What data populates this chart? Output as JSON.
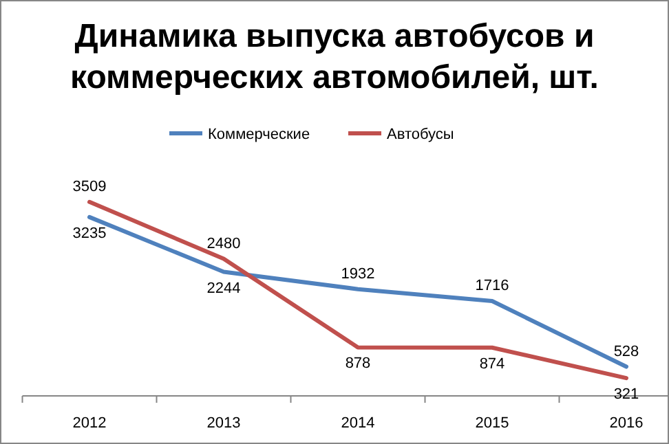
{
  "chart_data": {
    "type": "line",
    "title": "Динамика выпуска автобусов и коммерческих автомобилей, шт.",
    "categories": [
      "2012",
      "2013",
      "2014",
      "2015",
      "2016"
    ],
    "series": [
      {
        "name": "Коммерческие",
        "color": "#4f81bd",
        "values": [
          3235,
          2244,
          1932,
          1716,
          528
        ]
      },
      {
        "name": "Автобусы",
        "color": "#c0504d",
        "values": [
          3509,
          2480,
          878,
          874,
          321
        ]
      }
    ],
    "data_labels": true,
    "legend": "top",
    "grid": false,
    "marker": "none",
    "line_style": "solid"
  }
}
